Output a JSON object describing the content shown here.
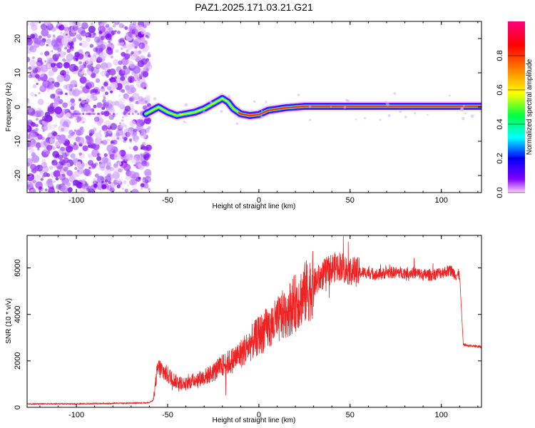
{
  "title": "PAZ1.2025.171.03.21.G21",
  "chart_data": [
    {
      "type": "heatmap",
      "xlabel": "Height of straight line (km)",
      "ylabel": "Frequency (Hz)",
      "xlim": [
        -127,
        122
      ],
      "ylim": [
        -25,
        25
      ],
      "x_ticks": [
        -100,
        -50,
        0,
        50,
        100
      ],
      "y_ticks": [
        -20,
        -10,
        0,
        10,
        20
      ],
      "x_tick_labels": [
        "-100",
        "-50",
        "0",
        "50",
        "100"
      ],
      "y_tick_labels": [
        "-20",
        "-10",
        "0",
        "10",
        "20"
      ],
      "colorbar": {
        "label": "Normalized spectral amplitude",
        "range": [
          0,
          1
        ],
        "ticks": [
          0.0,
          0.2,
          0.4,
          0.6,
          0.8
        ],
        "tick_labels": [
          "0.0",
          "0.2",
          "0.4",
          "0.6",
          "0.8"
        ],
        "colors": [
          "#ff66ff",
          "#8000ff",
          "#0000ff",
          "#00ffff",
          "#00ff00",
          "#ffff00",
          "#ff8000",
          "#ff0000",
          "#ff0080"
        ]
      },
      "noise_region_x": [
        -127,
        -60
      ],
      "ridge": {
        "x": [
          -62,
          -55,
          -50,
          -45,
          -40,
          -35,
          -30,
          -25,
          -20,
          -17,
          -14,
          -10,
          -5,
          0,
          5,
          10,
          15,
          20,
          25,
          30,
          40,
          50,
          60,
          70,
          80,
          90,
          100,
          110,
          122
        ],
        "y": [
          -2.0,
          0.0,
          -1.5,
          -2.5,
          -2.0,
          -1.5,
          -0.5,
          1.0,
          2.5,
          1.5,
          -0.5,
          -2.0,
          -2.5,
          -2.2,
          -1.0,
          -0.6,
          -0.2,
          0.0,
          0.2,
          0.2,
          0.2,
          0.2,
          0.2,
          0.2,
          0.2,
          0.2,
          0.2,
          0.2,
          0.2
        ],
        "amplitude": [
          0.25,
          0.35,
          0.45,
          0.55,
          0.6,
          0.6,
          0.55,
          0.5,
          0.45,
          0.55,
          0.65,
          0.75,
          0.8,
          0.8,
          0.85,
          0.9,
          0.9,
          0.92,
          0.95,
          0.95,
          0.95,
          0.95,
          0.95,
          0.95,
          0.95,
          0.95,
          0.95,
          0.95,
          0.95
        ]
      }
    },
    {
      "type": "line",
      "xlabel": "Height of straight line (km)",
      "ylabel": "SNR (10 * v/v)",
      "xlim": [
        -127,
        122
      ],
      "ylim": [
        0,
        7400
      ],
      "x_ticks": [
        -100,
        -50,
        0,
        50,
        100
      ],
      "y_ticks": [
        0,
        2000,
        4000,
        6000
      ],
      "x_tick_labels": [
        "-100",
        "-50",
        "0",
        "50",
        "100"
      ],
      "y_tick_labels": [
        "0",
        "2000",
        "4000",
        "6000"
      ],
      "series": [
        {
          "color": "#ee2222",
          "x": [
            -127,
            -100,
            -70,
            -60,
            -58,
            -57,
            -56,
            -55,
            -50,
            -45,
            -40,
            -35,
            -30,
            -25,
            -20,
            -15,
            -10,
            -5,
            0,
            5,
            10,
            15,
            20,
            25,
            30,
            35,
            40,
            45,
            48,
            50,
            55,
            60,
            65,
            70,
            75,
            80,
            85,
            90,
            95,
            100,
            105,
            108,
            110,
            112,
            115,
            122
          ],
          "y": [
            150,
            150,
            180,
            200,
            300,
            800,
            1400,
            1700,
            1400,
            1100,
            1000,
            1200,
            1300,
            1500,
            1800,
            2000,
            2300,
            2700,
            3100,
            3400,
            3700,
            4100,
            4500,
            4900,
            5300,
            5700,
            6000,
            6100,
            5900,
            5900,
            5800,
            5800,
            5700,
            5800,
            5800,
            5800,
            5800,
            5700,
            5700,
            5800,
            5900,
            5700,
            5700,
            2700,
            2650,
            2600
          ]
        }
      ]
    }
  ]
}
